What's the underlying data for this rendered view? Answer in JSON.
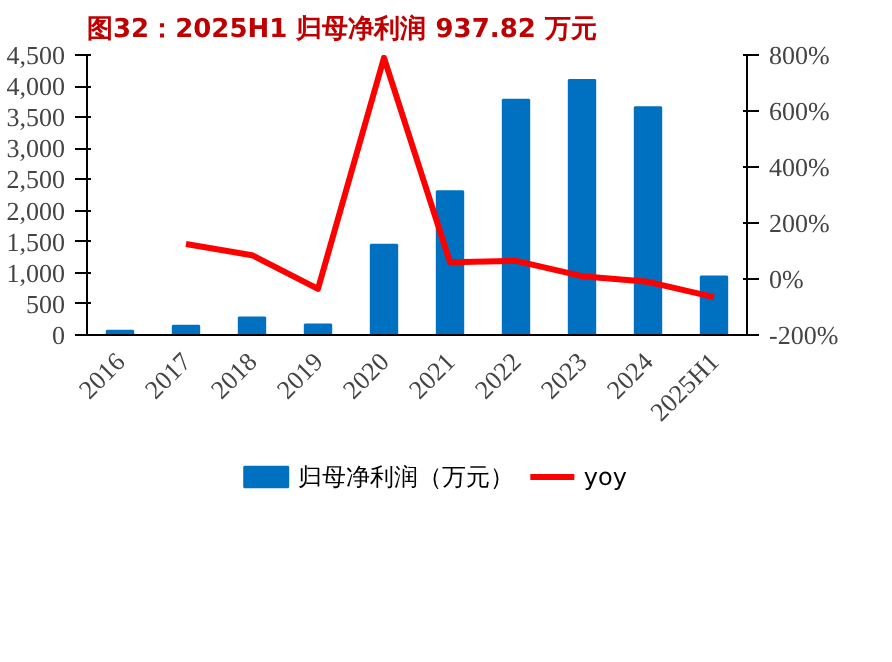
{
  "chart_data": {
    "type": "bar",
    "title": "图32：2025H1 归母净利润 937.82 万元",
    "categories": [
      "2016",
      "2017",
      "2018",
      "2019",
      "2020",
      "2021",
      "2022",
      "2023",
      "2024",
      "2025H1"
    ],
    "series": [
      {
        "name": "归母净利润（万元）",
        "color": "#0070c0",
        "values": [
          70,
          150,
          280,
          170,
          1450,
          2310,
          3780,
          4100,
          3660,
          940
        ]
      },
      {
        "name": "yoy",
        "type": "line",
        "axis": "y2",
        "color": "#ff0000",
        "values": [
          null,
          125,
          85,
          -35,
          790,
          60,
          65,
          10,
          -10,
          -65
        ]
      }
    ],
    "ylim": [
      0,
      4500
    ],
    "yticks": [
      0,
      {
        "value": 500,
        "label": "500"
      },
      {
        "value": 1000,
        "label": "1,000"
      },
      {
        "value": 1500,
        "label": "1,500"
      },
      {
        "value": 2000,
        "label": "2,000"
      },
      {
        "value": 2500,
        "label": "2,500"
      },
      {
        "value": 3000,
        "label": "3,000"
      },
      {
        "value": 3500,
        "label": "3,500"
      },
      {
        "value": 4000,
        "label": "4,000"
      },
      {
        "value": 4500,
        "label": "4,500"
      }
    ],
    "y2lim": [
      -200,
      800
    ],
    "y2ticks": [
      {
        "value": -200,
        "label": "-200%"
      },
      {
        "value": 0,
        "label": "0%"
      },
      {
        "value": 200,
        "label": "200%"
      },
      {
        "value": 400,
        "label": "400%"
      },
      {
        "value": 600,
        "label": "600%"
      },
      {
        "value": 800,
        "label": "800%"
      }
    ],
    "grid": false,
    "legend": "bottom",
    "marker": "none",
    "line_style": "solid"
  }
}
